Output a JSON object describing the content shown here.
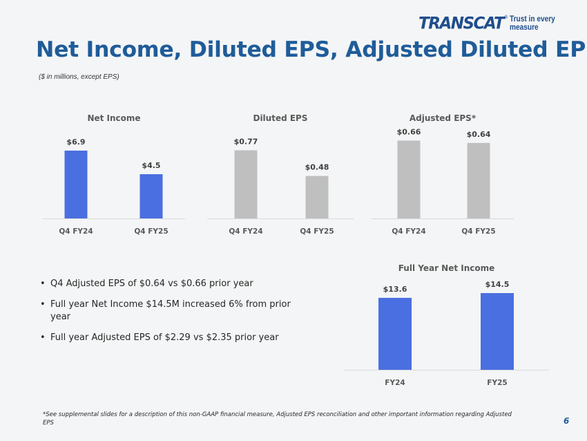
{
  "header": {
    "logo_word": "TRANSCAT",
    "logo_mark": "®",
    "tagline": "Trust in every measure",
    "title": "Net Income, Diluted EPS, Adjusted Diluted EPS*",
    "subtitle": "($ in millions, except EPS)"
  },
  "colors": {
    "accent_blue": "#4a6fe0",
    "bar_gray": "#bfbfbf",
    "title_blue": "#1f5c99"
  },
  "chart_data": [
    {
      "type": "bar",
      "title": "Net Income",
      "categories": [
        "Q4 FY24",
        "Q4 FY25"
      ],
      "values": [
        6.9,
        4.5
      ],
      "labels": [
        "$6.9",
        "$4.5"
      ],
      "color": "#4a6fe0",
      "ylim": [
        0,
        9
      ]
    },
    {
      "type": "bar",
      "title": "Diluted EPS",
      "categories": [
        "Q4 FY24",
        "Q4 FY25"
      ],
      "values": [
        0.77,
        0.48
      ],
      "labels": [
        "$0.77",
        "$0.48"
      ],
      "color": "#bfbfbf",
      "ylim": [
        0,
        1.0
      ]
    },
    {
      "type": "bar",
      "title": "Adjusted EPS*",
      "categories": [
        "Q4 FY24",
        "Q4 FY25"
      ],
      "values": [
        0.66,
        0.64
      ],
      "labels": [
        "$0.66",
        "$0.64"
      ],
      "color": "#bfbfbf",
      "ylim": [
        0,
        0.75
      ]
    },
    {
      "type": "bar",
      "title": "Full Year Net Income",
      "categories": [
        "FY24",
        "FY25"
      ],
      "values": [
        13.6,
        14.5
      ],
      "labels": [
        "$13.6",
        "$14.5"
      ],
      "color": "#4a6fe0",
      "ylim": [
        0,
        14.5
      ]
    }
  ],
  "bullets": [
    "Q4 Adjusted EPS of $0.64 vs $0.66 prior year",
    "Full year Net Income $14.5M increased 6% from prior year",
    "Full year Adjusted EPS of $2.29 vs $2.35 prior year"
  ],
  "footnote": "*See supplemental slides for a description of this non-GAAP financial measure, Adjusted EPS reconciliation and other important information regarding Adjusted EPS",
  "page_number": "6"
}
